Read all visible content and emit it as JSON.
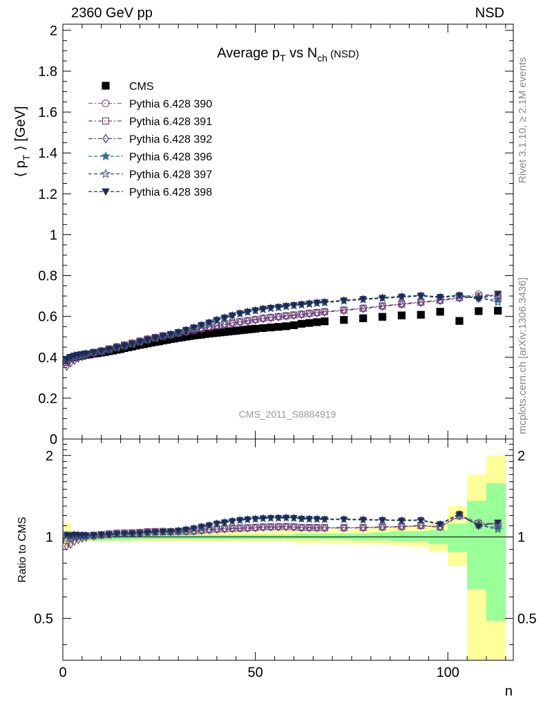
{
  "header": {
    "left": "2360 GeV pp",
    "right": "NSD"
  },
  "side_labels": {
    "rivet": "Rivet 3.1.10, ≥ 2.1M events",
    "mcplots": "mcplots.cern.ch [arXiv:1306.3436]"
  },
  "chart_data": [
    {
      "type": "scatter",
      "panel": "main",
      "title": {
        "main": "Average p",
        "sub1": "T",
        "mid": " vs N",
        "sub2": "ch",
        "suffix": " (NSD)"
      },
      "ylabel": "⟨ p  ⟩ [GeV]",
      "ylabel_parts": {
        "open": "⟨ p",
        "sub": "T",
        "close": "⟩ [GeV]"
      },
      "watermark": "CMS_2011_S8884919",
      "xlim": [
        0,
        117
      ],
      "ylim": [
        0,
        2.03
      ],
      "x_ticks": [
        0,
        50,
        100
      ],
      "y_ticks": [
        "0",
        "0.2",
        "0.4",
        "0.6",
        "0.8",
        "1",
        "1.2",
        "1.4",
        "1.6",
        "1.8",
        "2"
      ],
      "legend_placement": "top-left",
      "series": [
        {
          "name": "CMS",
          "color": "#000000",
          "marker": "square-filled",
          "line": "none",
          "x": [
            1,
            2,
            3,
            4,
            5,
            6,
            7,
            8,
            9,
            10,
            11,
            12,
            13,
            14,
            15,
            16,
            17,
            18,
            19,
            20,
            21,
            22,
            23,
            24,
            25,
            26,
            27,
            28,
            29,
            30,
            31,
            32,
            33,
            34,
            35,
            36,
            37,
            38,
            39,
            40,
            41,
            42,
            43,
            44,
            45,
            46,
            47,
            48,
            49,
            50,
            52,
            54,
            56,
            58,
            60,
            62,
            64,
            66,
            68,
            73,
            78,
            83,
            88,
            93,
            98,
            103,
            108,
            113
          ],
          "y": [
            0.385,
            0.397,
            0.4,
            0.405,
            0.408,
            0.412,
            0.414,
            0.418,
            0.42,
            0.423,
            0.426,
            0.43,
            0.433,
            0.437,
            0.44,
            0.445,
            0.449,
            0.453,
            0.457,
            0.461,
            0.464,
            0.468,
            0.472,
            0.475,
            0.478,
            0.482,
            0.485,
            0.489,
            0.492,
            0.495,
            0.498,
            0.501,
            0.504,
            0.507,
            0.509,
            0.511,
            0.514,
            0.516,
            0.518,
            0.52,
            0.522,
            0.524,
            0.526,
            0.528,
            0.53,
            0.532,
            0.534,
            0.536,
            0.538,
            0.54,
            0.543,
            0.546,
            0.549,
            0.552,
            0.557,
            0.564,
            0.568,
            0.572,
            0.576,
            0.583,
            0.591,
            0.598,
            0.605,
            0.608,
            0.623,
            0.578,
            0.626,
            0.628
          ]
        },
        {
          "name": "Pythia 6.428 390",
          "color": "#8e5d8f",
          "marker": "circle-open",
          "line": "dash-dot",
          "x": [
            1,
            2,
            3,
            4,
            5,
            6,
            8,
            10,
            12,
            14,
            16,
            18,
            20,
            22,
            24,
            26,
            28,
            30,
            32,
            34,
            36,
            38,
            40,
            42,
            44,
            46,
            48,
            50,
            52,
            54,
            56,
            58,
            60,
            62,
            64,
            66,
            68,
            73,
            78,
            83,
            88,
            93,
            98,
            103,
            108,
            113
          ],
          "y": [
            0.38,
            0.395,
            0.405,
            0.41,
            0.413,
            0.418,
            0.425,
            0.432,
            0.442,
            0.452,
            0.461,
            0.47,
            0.48,
            0.49,
            0.498,
            0.506,
            0.512,
            0.52,
            0.527,
            0.535,
            0.542,
            0.55,
            0.557,
            0.563,
            0.569,
            0.575,
            0.58,
            0.586,
            0.592,
            0.596,
            0.6,
            0.604,
            0.608,
            0.612,
            0.616,
            0.62,
            0.624,
            0.632,
            0.641,
            0.652,
            0.662,
            0.671,
            0.68,
            0.695,
            0.71,
            0.7
          ]
        },
        {
          "name": "Pythia 6.428 391",
          "color": "#7a4a6e",
          "marker": "square-open",
          "line": "dash-dot",
          "x": [
            1,
            2,
            3,
            4,
            5,
            6,
            8,
            10,
            12,
            14,
            16,
            18,
            20,
            22,
            24,
            26,
            28,
            30,
            32,
            34,
            36,
            38,
            40,
            42,
            44,
            46,
            48,
            50,
            52,
            54,
            56,
            58,
            60,
            62,
            64,
            66,
            68,
            73,
            78,
            83,
            88,
            93,
            98,
            103,
            108,
            113
          ],
          "y": [
            0.375,
            0.392,
            0.402,
            0.408,
            0.411,
            0.416,
            0.424,
            0.431,
            0.441,
            0.451,
            0.46,
            0.469,
            0.479,
            0.489,
            0.497,
            0.505,
            0.511,
            0.519,
            0.526,
            0.534,
            0.541,
            0.549,
            0.556,
            0.562,
            0.568,
            0.574,
            0.579,
            0.585,
            0.591,
            0.595,
            0.599,
            0.603,
            0.607,
            0.611,
            0.615,
            0.619,
            0.623,
            0.631,
            0.64,
            0.651,
            0.661,
            0.67,
            0.679,
            0.692,
            0.7,
            0.705
          ]
        },
        {
          "name": "Pythia 6.428 392",
          "color": "#5b3a8c",
          "marker": "diamond-open",
          "line": "dash-dot",
          "x": [
            1,
            2,
            3,
            4,
            5,
            6,
            8,
            10,
            12,
            14,
            16,
            18,
            20,
            22,
            24,
            26,
            28,
            30,
            32,
            34,
            36,
            38,
            40,
            42,
            44,
            46,
            48,
            50,
            52,
            54,
            56,
            58,
            60,
            62,
            64,
            66,
            68,
            73,
            78,
            83,
            88,
            93,
            98,
            103,
            108,
            113
          ],
          "y": [
            0.355,
            0.372,
            0.385,
            0.395,
            0.403,
            0.41,
            0.42,
            0.429,
            0.439,
            0.449,
            0.458,
            0.467,
            0.477,
            0.487,
            0.495,
            0.503,
            0.509,
            0.517,
            0.524,
            0.532,
            0.539,
            0.547,
            0.554,
            0.56,
            0.566,
            0.572,
            0.577,
            0.583,
            0.589,
            0.593,
            0.597,
            0.601,
            0.605,
            0.609,
            0.613,
            0.617,
            0.621,
            0.629,
            0.638,
            0.649,
            0.659,
            0.668,
            0.677,
            0.69,
            0.695,
            0.7
          ]
        },
        {
          "name": "Pythia 6.428 396",
          "color": "#3f6f8a",
          "marker": "star-filled",
          "line": "dashed",
          "x": [
            1,
            2,
            3,
            4,
            5,
            6,
            8,
            10,
            12,
            14,
            16,
            18,
            20,
            22,
            24,
            26,
            28,
            30,
            32,
            34,
            36,
            38,
            40,
            42,
            44,
            46,
            48,
            50,
            52,
            54,
            56,
            58,
            60,
            62,
            64,
            66,
            68,
            73,
            78,
            83,
            88,
            93,
            98,
            103,
            108,
            113
          ],
          "y": [
            0.388,
            0.398,
            0.405,
            0.409,
            0.412,
            0.415,
            0.421,
            0.428,
            0.436,
            0.445,
            0.454,
            0.463,
            0.473,
            0.483,
            0.492,
            0.501,
            0.51,
            0.52,
            0.531,
            0.543,
            0.555,
            0.567,
            0.58,
            0.591,
            0.602,
            0.612,
            0.62,
            0.627,
            0.634,
            0.639,
            0.643,
            0.648,
            0.652,
            0.656,
            0.66,
            0.664,
            0.667,
            0.675,
            0.682,
            0.688,
            0.694,
            0.699,
            0.692,
            0.7,
            0.69,
            0.68
          ]
        },
        {
          "name": "Pythia 6.428 397",
          "color": "#2e4f6e",
          "marker": "star-open",
          "line": "dashed",
          "x": [
            1,
            2,
            3,
            4,
            5,
            6,
            8,
            10,
            12,
            14,
            16,
            18,
            20,
            22,
            24,
            26,
            28,
            30,
            32,
            34,
            36,
            38,
            40,
            42,
            44,
            46,
            48,
            50,
            52,
            54,
            56,
            58,
            60,
            62,
            64,
            66,
            68,
            73,
            78,
            83,
            88,
            93,
            98,
            103,
            108,
            113
          ],
          "y": [
            0.39,
            0.4,
            0.407,
            0.411,
            0.414,
            0.417,
            0.423,
            0.43,
            0.438,
            0.447,
            0.456,
            0.465,
            0.475,
            0.485,
            0.494,
            0.503,
            0.512,
            0.522,
            0.533,
            0.545,
            0.557,
            0.569,
            0.582,
            0.593,
            0.604,
            0.614,
            0.622,
            0.629,
            0.636,
            0.641,
            0.645,
            0.65,
            0.654,
            0.658,
            0.662,
            0.666,
            0.669,
            0.677,
            0.684,
            0.69,
            0.696,
            0.701,
            0.694,
            0.702,
            0.692,
            0.67
          ]
        },
        {
          "name": "Pythia 6.428 398",
          "color": "#1c2a5a",
          "marker": "triangle-down-filled",
          "line": "dashed",
          "x": [
            1,
            2,
            3,
            4,
            5,
            6,
            8,
            10,
            12,
            14,
            16,
            18,
            20,
            22,
            24,
            26,
            28,
            30,
            32,
            34,
            36,
            38,
            40,
            42,
            44,
            46,
            48,
            50,
            52,
            54,
            56,
            58,
            60,
            62,
            64,
            66,
            68,
            73,
            78,
            83,
            88,
            93,
            98,
            103,
            108,
            113
          ],
          "y": [
            0.393,
            0.402,
            0.409,
            0.413,
            0.416,
            0.419,
            0.425,
            0.432,
            0.44,
            0.449,
            0.458,
            0.467,
            0.477,
            0.487,
            0.496,
            0.505,
            0.514,
            0.524,
            0.535,
            0.547,
            0.559,
            0.571,
            0.584,
            0.595,
            0.606,
            0.616,
            0.624,
            0.631,
            0.638,
            0.643,
            0.647,
            0.652,
            0.656,
            0.66,
            0.664,
            0.668,
            0.671,
            0.679,
            0.686,
            0.692,
            0.698,
            0.703,
            0.696,
            0.704,
            0.684,
            0.712
          ]
        }
      ]
    },
    {
      "type": "scatter",
      "panel": "ratio",
      "ylabel": "Ratio to CMS",
      "xlabel": "n",
      "xlim": [
        0,
        117
      ],
      "ylim": [
        0.35,
        2.3
      ],
      "log_y": true,
      "y_ticks": [
        "0.5",
        "1",
        "2"
      ],
      "x_ticks": [
        "0",
        "50",
        "100"
      ],
      "reference_line": 1,
      "bands": {
        "x_edges": [
          0,
          2,
          4,
          6,
          8,
          10,
          12,
          14,
          16,
          18,
          20,
          25,
          30,
          35,
          40,
          45,
          50,
          55,
          60,
          65,
          70,
          75,
          80,
          85,
          90,
          95,
          100,
          105,
          110,
          115
        ],
        "yellow_lo": [
          0.93,
          0.95,
          0.96,
          0.96,
          0.96,
          0.96,
          0.96,
          0.96,
          0.96,
          0.96,
          0.96,
          0.96,
          0.96,
          0.96,
          0.96,
          0.96,
          0.96,
          0.96,
          0.95,
          0.95,
          0.95,
          0.94,
          0.94,
          0.93,
          0.92,
          0.88,
          0.78,
          0.35,
          0.35
        ],
        "yellow_hi": [
          1.13,
          1.05,
          1.04,
          1.04,
          1.04,
          1.04,
          1.04,
          1.04,
          1.04,
          1.04,
          1.04,
          1.04,
          1.05,
          1.05,
          1.05,
          1.05,
          1.05,
          1.06,
          1.06,
          1.06,
          1.07,
          1.07,
          1.08,
          1.09,
          1.1,
          1.12,
          1.3,
          1.7,
          2.0
        ],
        "green_lo": [
          0.96,
          0.97,
          0.97,
          0.97,
          0.97,
          0.97,
          0.97,
          0.97,
          0.97,
          0.98,
          0.98,
          0.98,
          0.98,
          0.98,
          0.98,
          0.98,
          0.98,
          0.98,
          0.98,
          0.98,
          0.98,
          0.97,
          0.97,
          0.96,
          0.96,
          0.94,
          0.88,
          0.64,
          0.49
        ],
        "green_hi": [
          1.05,
          1.03,
          1.02,
          1.02,
          1.02,
          1.02,
          1.02,
          1.02,
          1.02,
          1.02,
          1.02,
          1.02,
          1.02,
          1.02,
          1.02,
          1.02,
          1.02,
          1.02,
          1.03,
          1.03,
          1.03,
          1.03,
          1.04,
          1.05,
          1.05,
          1.06,
          1.12,
          1.36,
          1.58
        ]
      }
    }
  ]
}
